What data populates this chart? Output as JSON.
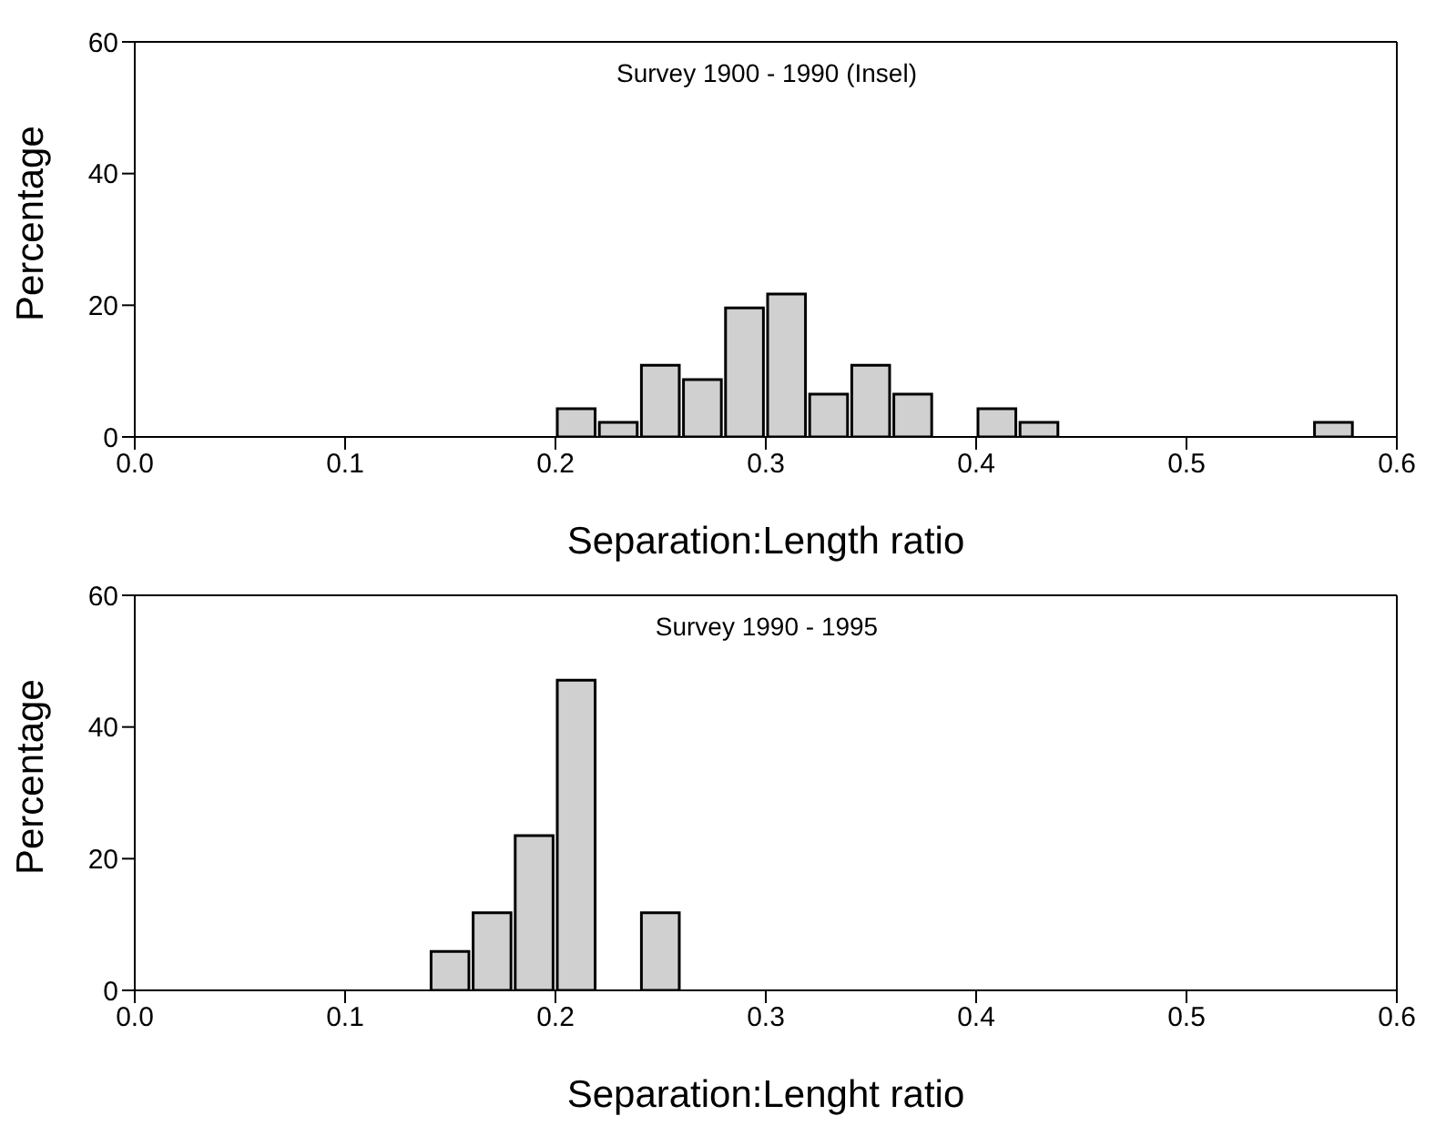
{
  "chart_data": [
    {
      "type": "histogram",
      "title": "Survey 1900 - 1990 (Insel)",
      "xlabel": "Separation:Length ratio",
      "ylabel": "Percentage",
      "color": "#d0d0d0",
      "bins": [
        0.2,
        0.22,
        0.24,
        0.26,
        0.28,
        0.3,
        0.32,
        0.34,
        0.36,
        0.38,
        0.4,
        0.42,
        0.44,
        0.46,
        0.48,
        0.5,
        0.52,
        0.54,
        0.56,
        0.58
      ],
      "values": [
        4.3,
        2.2,
        10.9,
        8.7,
        19.6,
        21.7,
        6.5,
        10.9,
        6.5,
        0,
        4.3,
        2.2,
        0,
        0,
        0,
        0,
        0,
        0,
        2.2
      ],
      "xlim": [
        0,
        0.6
      ],
      "xticks": [
        {
          "value": 0,
          "label": "0.0"
        },
        0.1,
        0.2,
        0.3,
        0.4,
        0.5,
        0.6
      ],
      "ylim": [
        0,
        60
      ],
      "yticks": [
        0,
        20,
        40,
        60
      ],
      "grid": false
    },
    {
      "type": "histogram",
      "title": "Survey 1990 - 1995",
      "xlabel": "Separation:Lenght ratio",
      "ylabel": "Percentage",
      "color": "#d0d0d0",
      "bins": [
        0.14,
        0.16,
        0.18,
        0.2,
        0.22,
        0.24,
        0.26
      ],
      "values": [
        5.9,
        11.8,
        23.5,
        47.1,
        0,
        11.8
      ],
      "xlim": [
        0,
        0.6
      ],
      "xticks": [
        {
          "value": 0,
          "label": "0.0"
        },
        0.1,
        0.2,
        0.3,
        0.4,
        0.5,
        0.6
      ],
      "ylim": [
        0,
        60
      ],
      "yticks": [
        0,
        20,
        40,
        60
      ],
      "grid": false
    }
  ]
}
